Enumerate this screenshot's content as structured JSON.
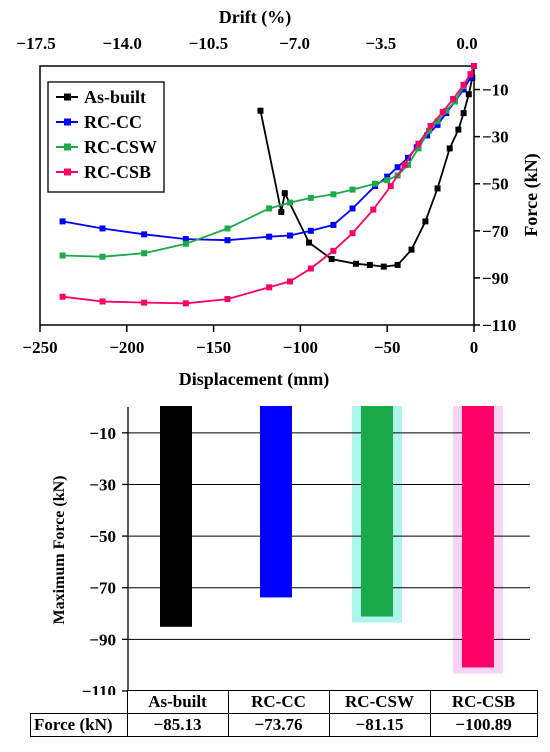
{
  "chart_data": [
    {
      "type": "line",
      "xlabel": "Displacement (mm)",
      "ylabel": "Force (kN)",
      "top_xlabel": "Drift (%)",
      "xlim": [
        -250,
        0
      ],
      "ylim": [
        -110,
        0
      ],
      "x_ticks": [
        "−250",
        "−200",
        "−150",
        "−100",
        "−50",
        "0"
      ],
      "y_ticks": [
        "−10",
        "−30",
        "−50",
        "−70",
        "−90",
        "−110"
      ],
      "top_ticks": [
        "−17.5",
        "−14.0",
        "−10.5",
        "−7.0",
        "−3.5",
        "0.0"
      ],
      "legend_position": "top-left",
      "series": [
        {
          "name": "As-built",
          "color": "#000000",
          "points": [
            [
              -123,
              -19
            ],
            [
              -111,
              -62
            ],
            [
              -109,
              -54
            ],
            [
              -95,
              -75
            ],
            [
              -82,
              -82
            ],
            [
              -68,
              -84
            ],
            [
              -60,
              -84.5
            ],
            [
              -52,
              -85.2
            ],
            [
              -44,
              -84.5
            ],
            [
              -36,
              -78
            ],
            [
              -28,
              -66
            ],
            [
              -21,
              -52
            ],
            [
              -14,
              -35
            ],
            [
              -9,
              -27
            ],
            [
              -6,
              -20
            ],
            [
              -3,
              -12
            ],
            [
              -1,
              -5
            ],
            [
              0,
              0
            ]
          ]
        },
        {
          "name": "RC-CC",
          "color": "#0000ff",
          "points": [
            [
              -237,
              -66
            ],
            [
              -214,
              -69
            ],
            [
              -190,
              -71.5
            ],
            [
              -166,
              -73.5
            ],
            [
              -142,
              -74
            ],
            [
              -118,
              -72.5
            ],
            [
              -106,
              -72
            ],
            [
              -94,
              -70
            ],
            [
              -81,
              -67.5
            ],
            [
              -70,
              -60.5
            ],
            [
              -57,
              -51
            ],
            [
              -50,
              -47
            ],
            [
              -44,
              -43
            ],
            [
              -38,
              -39
            ],
            [
              -33,
              -34.5
            ],
            [
              -27,
              -29.5
            ],
            [
              -21,
              -25
            ],
            [
              -16,
              -20
            ],
            [
              -11,
              -15
            ],
            [
              -6,
              -10
            ],
            [
              -2,
              -5
            ],
            [
              0,
              0
            ]
          ]
        },
        {
          "name": "RC-CSW",
          "color": "#1aaa4a",
          "points": [
            [
              -237,
              -80.5
            ],
            [
              -214,
              -81
            ],
            [
              -190,
              -79.5
            ],
            [
              -166,
              -75.5
            ],
            [
              -142,
              -69
            ],
            [
              -118,
              -60.5
            ],
            [
              -106,
              -58
            ],
            [
              -94,
              -56
            ],
            [
              -81,
              -54.5
            ],
            [
              -70,
              -52.5
            ],
            [
              -57,
              -50
            ],
            [
              -50,
              -48.5
            ],
            [
              -44,
              -46.5
            ],
            [
              -38,
              -42
            ],
            [
              -32,
              -35
            ],
            [
              -26,
              -27.5
            ],
            [
              -21,
              -23.5
            ],
            [
              -16,
              -19
            ],
            [
              -11,
              -15
            ],
            [
              -6,
              -8.5
            ],
            [
              -2,
              -3.5
            ],
            [
              0,
              0
            ]
          ]
        },
        {
          "name": "RC-CSB",
          "color": "#ff0066",
          "points": [
            [
              -237,
              -98
            ],
            [
              -214,
              -100
            ],
            [
              -190,
              -100.5
            ],
            [
              -166,
              -100.8
            ],
            [
              -142,
              -99
            ],
            [
              -118,
              -94
            ],
            [
              -106,
              -91.5
            ],
            [
              -94,
              -86
            ],
            [
              -81,
              -78.5
            ],
            [
              -70,
              -71
            ],
            [
              -58,
              -61
            ],
            [
              -48,
              -51
            ],
            [
              -40,
              -42
            ],
            [
              -32,
              -33
            ],
            [
              -25,
              -25.5
            ],
            [
              -18,
              -19.5
            ],
            [
              -12,
              -14
            ],
            [
              -6,
              -8
            ],
            [
              -2,
              -3.5
            ],
            [
              0,
              0
            ]
          ]
        }
      ]
    },
    {
      "type": "bar",
      "ylabel": "Maximum Force (kN)",
      "ylim": [
        -110,
        0
      ],
      "y_ticks": [
        "−10",
        "−30",
        "−50",
        "−70",
        "−90",
        "−110"
      ],
      "categories": [
        "As-built",
        "RC-CC",
        "RC-CSW",
        "RC-CSB"
      ],
      "values": [
        -85.13,
        -73.76,
        -81.15,
        -100.89
      ],
      "colors": [
        "#000000",
        "#0000ff",
        "#1aaa4a",
        "#ff0066"
      ],
      "glow_colors": [
        "",
        "",
        "#aef5ee",
        "#f6d4f4"
      ],
      "grid": true
    }
  ],
  "table": {
    "row_label": "Force (kN)",
    "headers": [
      "As-built",
      "RC-CC",
      "RC-CSW",
      "RC-CSB"
    ],
    "values": [
      "−85.13",
      "−73.76",
      "−81.15",
      "−100.89"
    ]
  }
}
